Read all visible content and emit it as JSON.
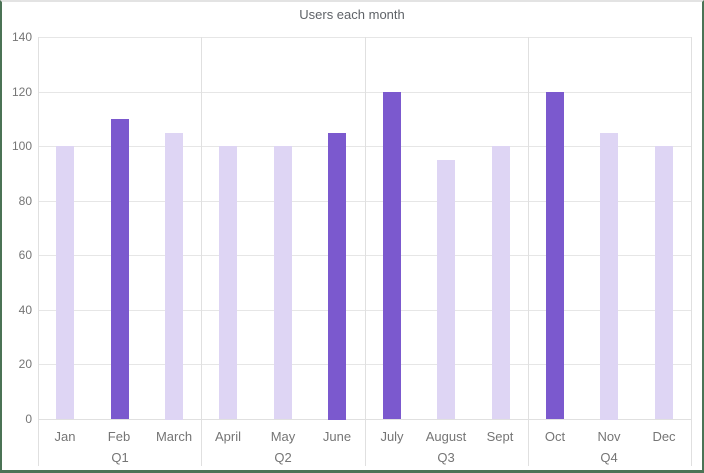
{
  "chart_data": {
    "type": "bar",
    "title": "Users each month",
    "categories": [
      "Jan",
      "Feb",
      "March",
      "April",
      "May",
      "June",
      "July",
      "August",
      "Sept",
      "Oct",
      "Nov",
      "Dec"
    ],
    "values": [
      100,
      110,
      105,
      100,
      100,
      105,
      120,
      95,
      100,
      120,
      105,
      100
    ],
    "emphasized": [
      false,
      true,
      false,
      false,
      false,
      true,
      true,
      false,
      false,
      true,
      false,
      false
    ],
    "group_labels": [
      "Q1",
      "Q2",
      "Q3",
      "Q4"
    ],
    "months_per_group": 3,
    "yticks": [
      0,
      20,
      40,
      60,
      80,
      100,
      120,
      140
    ],
    "ylim": [
      0,
      140
    ],
    "grid": true,
    "legend": "none",
    "colors": {
      "bar_light": "#ded5f4",
      "bar_dark": "#7b59ce",
      "gridline": "#e6e6e6",
      "axis_line": "#e0e0e0",
      "title_text": "#5f6368",
      "tick_text": "#757575",
      "frame_green": "#4b7355",
      "frame_top": "#e3e3e3",
      "background": "#ffffff"
    }
  }
}
